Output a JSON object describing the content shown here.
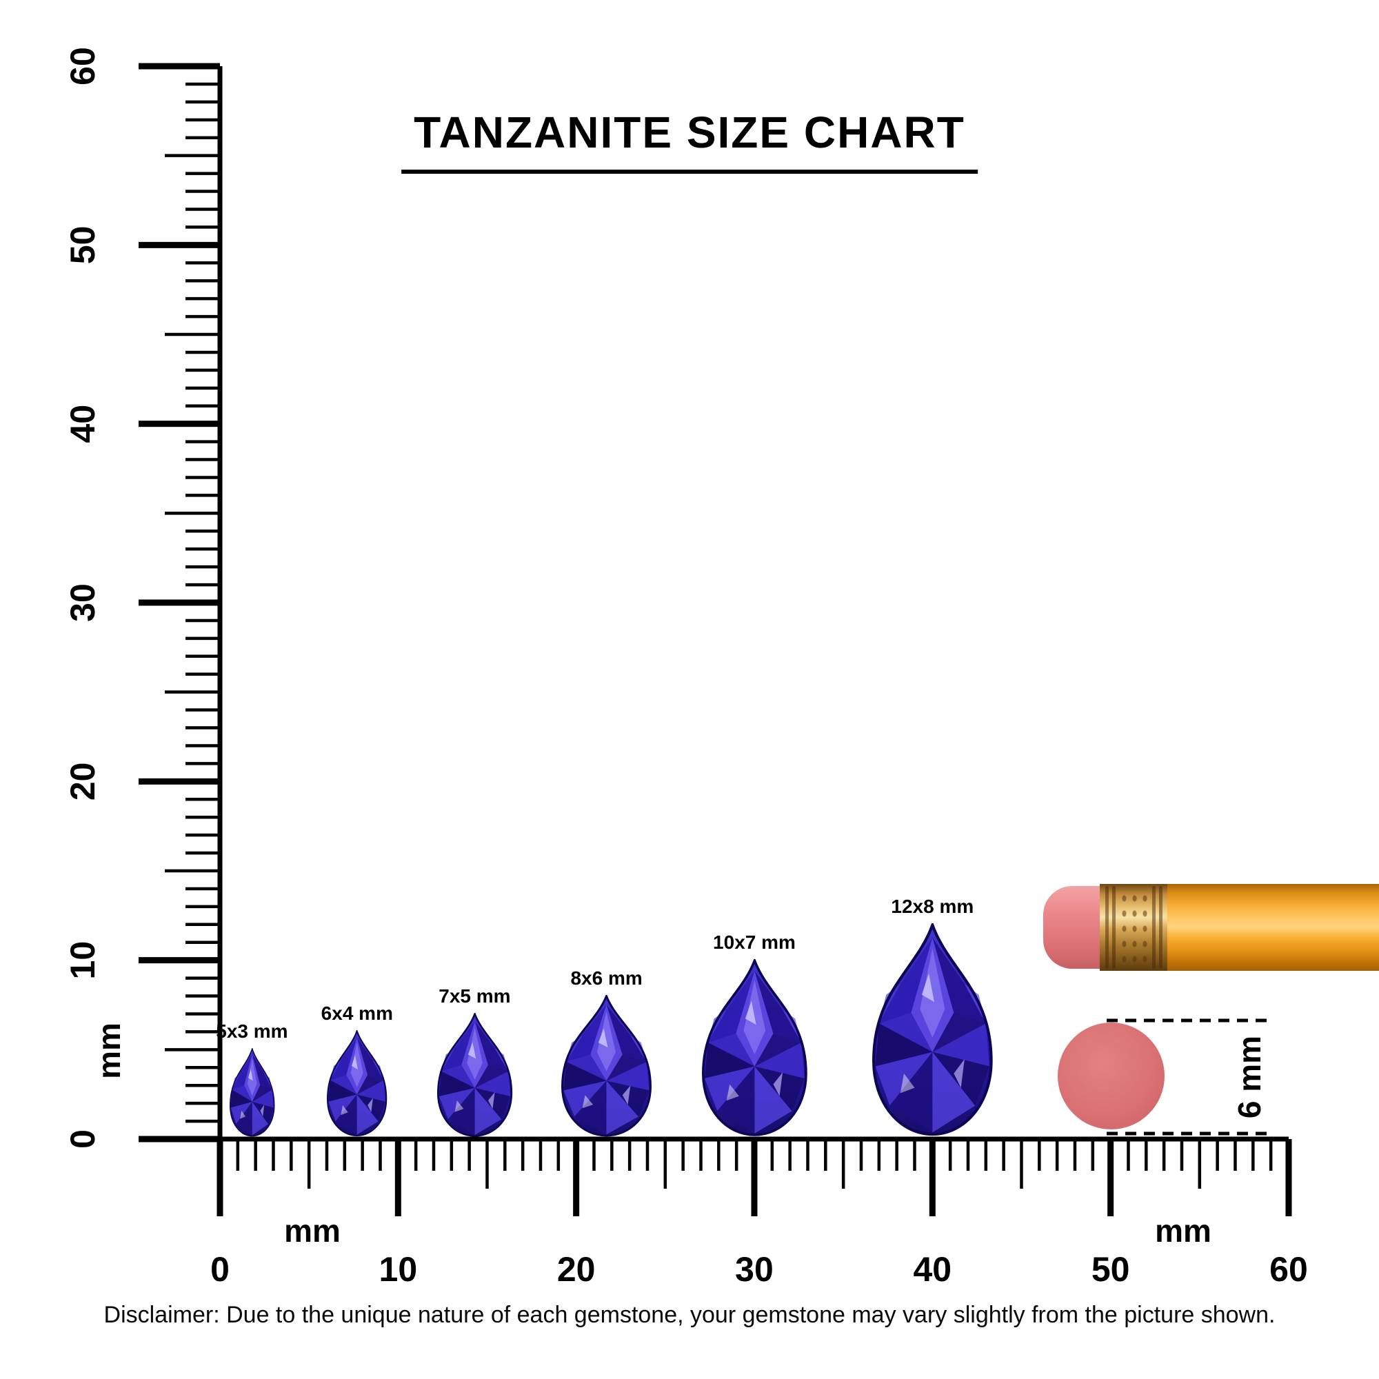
{
  "title": "TANZANITE SIZE CHART",
  "disclaimer": "Disclaimer: Due to the unique nature of each gemstone, your gemstone may vary slightly from the picture shown.",
  "rulers": {
    "vertical": {
      "unit": "mm",
      "labels": [
        "0",
        "10",
        "20",
        "30",
        "40",
        "50",
        "60"
      ],
      "range_mm": [
        0,
        60
      ]
    },
    "horizontal": {
      "unit_left": "mm",
      "unit_right": "mm",
      "labels": [
        "0",
        "10",
        "20",
        "30",
        "40",
        "50",
        "60"
      ],
      "range_mm": [
        0,
        60
      ]
    }
  },
  "gems": [
    {
      "label": "5x3 mm",
      "width_mm": 3,
      "height_mm": 5
    },
    {
      "label": "6x4 mm",
      "width_mm": 4,
      "height_mm": 6
    },
    {
      "label": "7x5 mm",
      "width_mm": 5,
      "height_mm": 7
    },
    {
      "label": "8x6 mm",
      "width_mm": 6,
      "height_mm": 8
    },
    {
      "label": "10x7 mm",
      "width_mm": 7,
      "height_mm": 10
    },
    {
      "label": "12x8 mm",
      "width_mm": 8,
      "height_mm": 12
    }
  ],
  "eraser_measure": {
    "label": "6 mm",
    "diameter_mm": 6
  },
  "colors": {
    "gem_base": "#2a1aa6",
    "gem_light": "#6a58e8",
    "gem_dark": "#140a52",
    "eraser_pink": "#da7175",
    "pencil_orange": "#f8ab2e",
    "ferrule_gold": "#d9a958",
    "ink": "#000000"
  }
}
